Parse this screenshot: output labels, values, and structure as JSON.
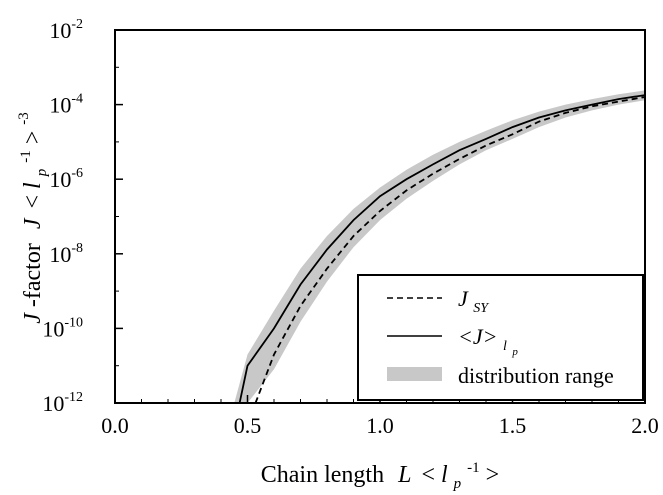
{
  "chart_data": {
    "type": "line",
    "title": "",
    "xlabel": "Chain length  L <l_p^-1>",
    "ylabel": "J-factor  J <l_p^-1>^-3",
    "xlim": [
      0.0,
      2.0
    ],
    "ylim": [
      1e-12,
      0.01
    ],
    "y_scale": "log",
    "x_ticks": [
      "0.0",
      "0.5",
      "1.0",
      "1.5",
      "2.0"
    ],
    "y_ticks": [
      {
        "base": "10",
        "exp": "-2"
      },
      {
        "base": "10",
        "exp": "-4"
      },
      {
        "base": "10",
        "exp": "-6"
      },
      {
        "base": "10",
        "exp": "-8"
      },
      {
        "base": "10",
        "exp": "-10"
      },
      {
        "base": "10",
        "exp": "-12"
      }
    ],
    "grid": false,
    "legend_position": "bottom-right",
    "series": [
      {
        "name": "J_SY",
        "style": "dashed",
        "color": "#000000",
        "x": [
          0.53,
          0.6,
          0.7,
          0.8,
          0.9,
          1.0,
          1.1,
          1.2,
          1.3,
          1.4,
          1.5,
          1.6,
          1.7,
          1.8,
          1.9,
          2.0
        ],
        "y": [
          1e-12,
          2e-11,
          4e-10,
          4e-09,
          3e-08,
          1.4e-07,
          5e-07,
          1.4e-06,
          3.5e-06,
          8e-06,
          1.6e-05,
          3.5e-05,
          6e-05,
          9e-05,
          0.00012,
          0.00016
        ]
      },
      {
        "name": "<J>_lp",
        "style": "solid",
        "color": "#000000",
        "x": [
          0.47,
          0.5,
          0.6,
          0.7,
          0.8,
          0.9,
          1.0,
          1.1,
          1.2,
          1.3,
          1.4,
          1.5,
          1.6,
          1.7,
          1.8,
          1.9,
          2.0
        ],
        "y": [
          1e-12,
          1e-11,
          1e-10,
          1.5e-09,
          1.3e-08,
          8e-08,
          3.5e-07,
          1e-06,
          2.5e-06,
          6e-06,
          1.2e-05,
          2.5e-05,
          4.5e-05,
          7e-05,
          0.0001,
          0.00014,
          0.00018
        ]
      },
      {
        "name": "distribution range",
        "style": "band",
        "color": "#c8c8c8",
        "x": [
          0.45,
          0.5,
          0.6,
          0.7,
          0.8,
          0.9,
          1.0,
          1.1,
          1.2,
          1.3,
          1.4,
          1.5,
          1.6,
          1.7,
          1.8,
          1.9,
          2.0
        ],
        "y_low": [
          1e-13,
          2e-13,
          8e-12,
          1.5e-10,
          1.8e-09,
          1.5e-08,
          8e-08,
          3e-07,
          9e-07,
          2.5e-06,
          6e-06,
          1.2e-05,
          2.5e-05,
          4.5e-05,
          7e-05,
          0.0001,
          0.00013
        ],
        "y_high": [
          1e-12,
          2e-11,
          3e-10,
          4e-09,
          3e-08,
          1.6e-07,
          6e-07,
          1.8e-06,
          4.5e-06,
          1e-05,
          2e-05,
          3.8e-05,
          6.5e-05,
          0.0001,
          0.00014,
          0.00019,
          0.00024
        ]
      }
    ],
    "legend": [
      {
        "label_main": "J",
        "label_sub": "SY",
        "label_sub2": "",
        "style": "dashed"
      },
      {
        "label_main": "<J>",
        "label_sub": "l",
        "label_sub2": "p",
        "style": "solid"
      },
      {
        "label_main": "distribution range",
        "label_sub": "",
        "label_sub2": "",
        "style": "band"
      }
    ],
    "axis_text": {
      "x_prefix": "Chain length",
      "x_var": "L",
      "x_open": "<",
      "x_l": "l",
      "x_p": "p",
      "x_exp": "-1",
      "x_close": ">",
      "y_prefix_italic": "J",
      "y_prefix": "-factor",
      "y_var": "J",
      "y_open": "<",
      "y_l": "l",
      "y_p": "p",
      "y_exp_inner": "-1",
      "y_close": ">",
      "y_exp_outer": "-3"
    }
  }
}
